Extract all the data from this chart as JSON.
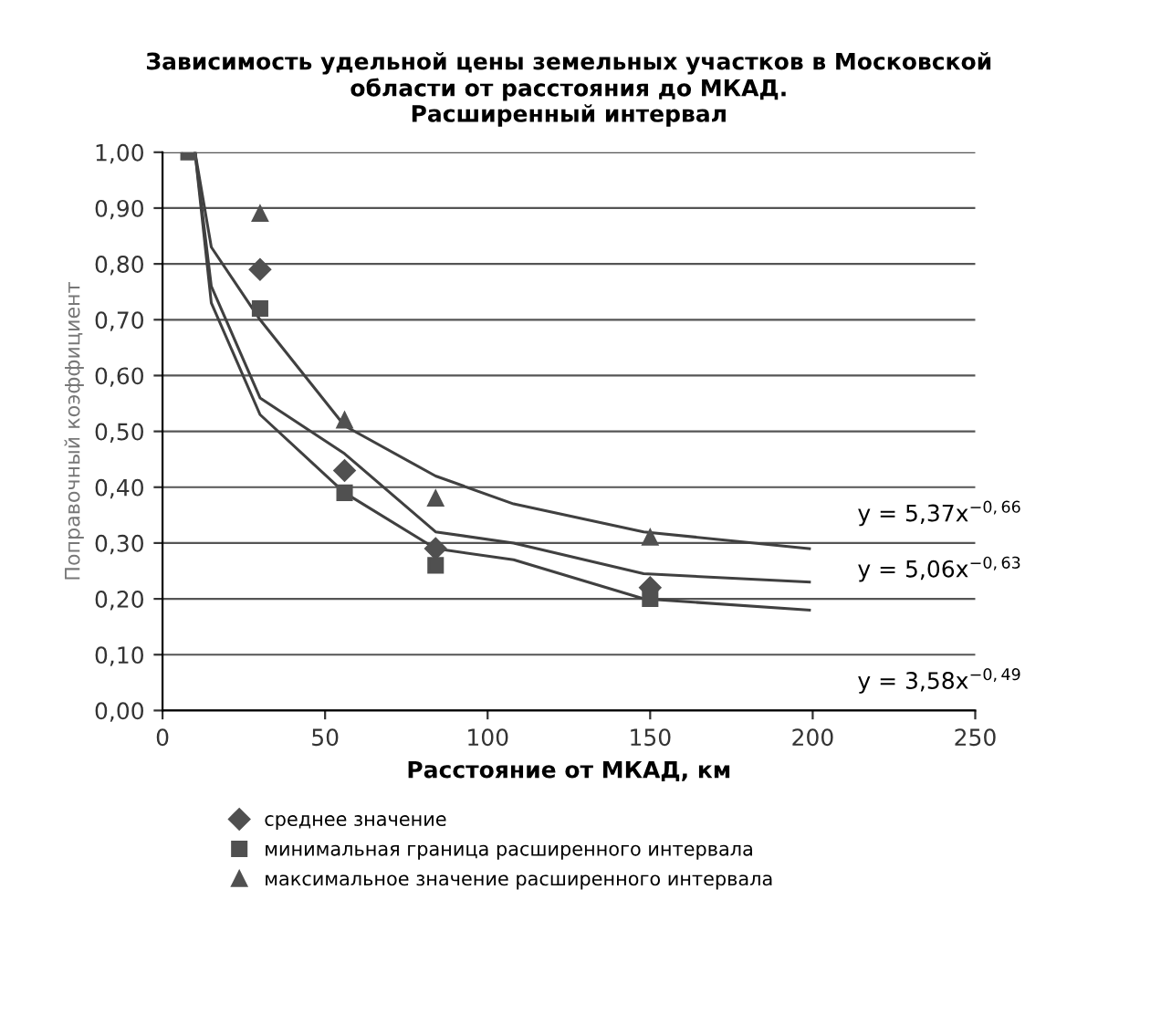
{
  "chart_data": {
    "type": "scatter",
    "title": "Зависимость удельной цены земельных участков в Московской\nобласти от расстояния до МКАД.\nРасширенный интервал",
    "xlabel": "Расстояние от МКАД, км",
    "ylabel": "Поправочный коэффициент",
    "xlim": [
      0,
      250
    ],
    "xticks": [
      0,
      50,
      100,
      150,
      200,
      250
    ],
    "ylim": [
      0,
      1
    ],
    "yticks": [
      {
        "value": 0,
        "label": "0,00"
      },
      {
        "value": 0.1,
        "label": "0,10"
      },
      {
        "value": 0.2,
        "label": "0,20"
      },
      {
        "value": 0.3,
        "label": "0,30"
      },
      {
        "value": 0.4,
        "label": "0,40"
      },
      {
        "value": 0.5,
        "label": "0,50"
      },
      {
        "value": 0.6,
        "label": "0,60"
      },
      {
        "value": 0.7,
        "label": "0,70"
      },
      {
        "value": 0.8,
        "label": "0,80"
      },
      {
        "value": 0.9,
        "label": "0,90"
      },
      {
        "value": 1,
        "label": "1,00"
      }
    ],
    "grid": "y",
    "legend": "bottom",
    "series": [
      {
        "name": "среднее значение",
        "marker": "diamond",
        "color": "#505050",
        "x": [
          30,
          56,
          84,
          150
        ],
        "values": [
          0.79,
          0.43,
          0.29,
          0.22
        ]
      },
      {
        "name": "минимальная граница расширенного интервала",
        "marker": "square",
        "color": "#505050",
        "x": [
          8,
          30,
          56,
          84,
          150
        ],
        "values": [
          1.0,
          0.72,
          0.39,
          0.26,
          0.2
        ]
      },
      {
        "name": "максимальное значение расширенного интервала",
        "marker": "triangle",
        "color": "#505050",
        "x": [
          30,
          56,
          84,
          150
        ],
        "values": [
          0.89,
          0.52,
          0.38,
          0.31
        ]
      },
      {
        "type": "line",
        "marker": "none",
        "color": "#404040",
        "x": [
          10,
          15,
          30,
          56,
          84,
          108,
          148,
          199
        ],
        "values": [
          1.0,
          0.83,
          0.7,
          0.51,
          0.42,
          0.37,
          0.32,
          0.29
        ]
      },
      {
        "type": "line",
        "marker": "none",
        "color": "#404040",
        "x": [
          10,
          15,
          30,
          56,
          84,
          108,
          148,
          199
        ],
        "values": [
          1.0,
          0.76,
          0.56,
          0.46,
          0.32,
          0.3,
          0.245,
          0.23
        ]
      },
      {
        "type": "line",
        "marker": "none",
        "color": "#404040",
        "x": [
          10,
          15,
          30,
          56,
          84,
          108,
          148,
          199
        ],
        "values": [
          1.0,
          0.73,
          0.53,
          0.39,
          0.29,
          0.27,
          0.2,
          0.18
        ]
      }
    ],
    "annotations": [
      "y = 5,37x$^{−0,66}$",
      "y = 5,06x$^{−0,63}$",
      "y = 3,58x$^{−0,49}$"
    ]
  }
}
